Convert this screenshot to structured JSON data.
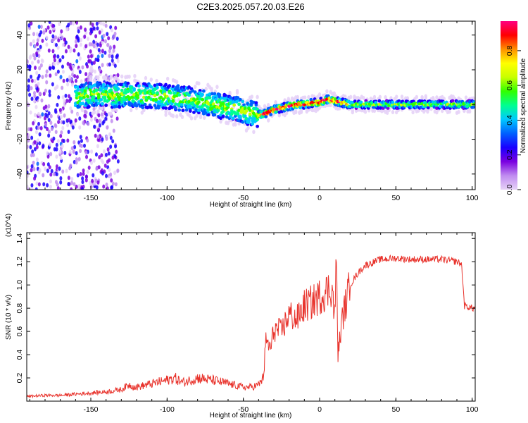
{
  "title": "C2E3.2025.057.20.03.E26",
  "colors": {
    "snr_line": "#e8322b",
    "colormap": [
      "#ffffff",
      "#e6d2f7",
      "#c08cf0",
      "#7a00e0",
      "#1a00ff",
      "#0060ff",
      "#00c8ff",
      "#00ff90",
      "#30ff00",
      "#c8ff00",
      "#ffff00",
      "#ff9000",
      "#ff0000",
      "#ff0080"
    ]
  },
  "chart_data": [
    {
      "type": "heatmap",
      "xlabel": "Height of straight line (km)",
      "ylabel": "Frequency (Hz)",
      "xlim": [
        -192,
        102
      ],
      "ylim": [
        -49,
        48
      ],
      "xticks": [
        "-150",
        "-100",
        "-50",
        "0",
        "50",
        "100"
      ],
      "yticks": [
        "40",
        "20",
        "0",
        "-20",
        "-40"
      ],
      "colorbar": {
        "label": "Normalized spectral amplitude",
        "range": [
          0,
          0.97
        ],
        "ticks": [
          "0.0",
          "0.2",
          "0.4",
          "0.6",
          "0.8"
        ]
      },
      "ridge": {
        "description_points_x": [
          -165,
          -155,
          -145,
          -135,
          -125,
          -115,
          -105,
          -95,
          -85,
          -75,
          -65,
          -55,
          -50,
          -45,
          -40,
          -35,
          -30,
          -25,
          -20,
          -15,
          -10,
          -5,
          0,
          5,
          10,
          15,
          20,
          30,
          40,
          50,
          60,
          70,
          80,
          90,
          100
        ],
        "center_freq_hz": [
          3,
          5,
          6,
          5,
          6,
          5,
          5,
          4,
          3,
          1,
          -1,
          -2,
          -4,
          -5,
          -6,
          -5,
          -3,
          -2,
          -1,
          0,
          0,
          1,
          1,
          3,
          2,
          1,
          0,
          0,
          0,
          0,
          0,
          0,
          0,
          0,
          0
        ]
      }
    },
    {
      "type": "line",
      "xlabel": "Height of straight line (km)",
      "ylabel": "SNR (10 * v/v)",
      "y_multiplier": "(x10^4)",
      "xlim": [
        -192,
        102
      ],
      "ylim": [
        0.0,
        1.45
      ],
      "xticks": [
        "-150",
        "-100",
        "-50",
        "0",
        "50",
        "100"
      ],
      "yticks": [
        "0.2",
        "0.4",
        "0.6",
        "0.8",
        "1.0",
        "1.2",
        "1.4"
      ],
      "series": [
        {
          "x": [
            -192,
            -180,
            -170,
            -160,
            -150,
            -140,
            -130,
            -125,
            -120,
            -110,
            -100,
            -95,
            -90,
            -80,
            -70,
            -60,
            -50,
            -45,
            -40,
            -37,
            -35,
            -32,
            -30,
            -25,
            -20,
            -15,
            -10,
            -5,
            0,
            5,
            8,
            10,
            11,
            12,
            15,
            20,
            25,
            30,
            40,
            50,
            60,
            70,
            80,
            90,
            93,
            95,
            100,
            102
          ],
          "y": [
            0.04,
            0.05,
            0.05,
            0.06,
            0.07,
            0.08,
            0.1,
            0.14,
            0.12,
            0.15,
            0.18,
            0.2,
            0.16,
            0.2,
            0.18,
            0.15,
            0.12,
            0.12,
            0.14,
            0.2,
            0.52,
            0.45,
            0.62,
            0.6,
            0.75,
            0.7,
            0.82,
            0.85,
            0.9,
            0.95,
            0.98,
            0.72,
            1.25,
            0.4,
            0.72,
            1.0,
            1.1,
            1.17,
            1.22,
            1.23,
            1.22,
            1.22,
            1.22,
            1.2,
            1.18,
            0.82,
            0.8,
            0.8
          ]
        }
      ]
    }
  ]
}
